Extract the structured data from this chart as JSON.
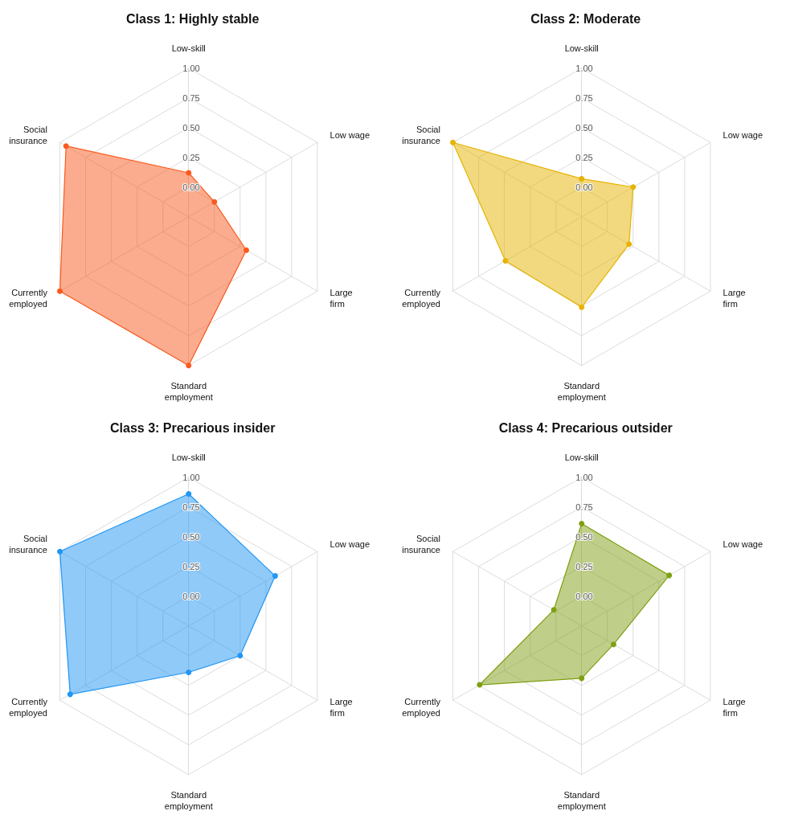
{
  "chart_data": [
    {
      "type": "radar",
      "title": "Class 1: Highly stable",
      "categories": [
        "Low-skill",
        "Low wage",
        "Large firm",
        "Standard employment",
        "Currently employed",
        "Social insurance"
      ],
      "ylim": [
        -0.25,
        1
      ],
      "yticks": [
        {
          "value": 0,
          "label": "0.00"
        },
        {
          "value": 0.25,
          "label": "0.25"
        },
        {
          "value": 0.5,
          "label": "0.50"
        },
        {
          "value": 0.75,
          "label": "0.75"
        },
        {
          "value": 1,
          "label": "1.00"
        }
      ],
      "marker": "circle",
      "series": [
        {
          "color": "#fa5a1e",
          "values": [
            0.12,
            0.0,
            0.31,
            1.0,
            1.0,
            0.94
          ]
        }
      ]
    },
    {
      "type": "radar",
      "title": "Class 2: Moderate",
      "categories": [
        "Low-skill",
        "Low wage",
        "Large firm",
        "Standard employment",
        "Currently employed",
        "Social insurance"
      ],
      "ylim": [
        -0.25,
        1
      ],
      "yticks": [
        {
          "value": 0,
          "label": "0.00"
        },
        {
          "value": 0.25,
          "label": "0.25"
        },
        {
          "value": 0.5,
          "label": "0.50"
        },
        {
          "value": 0.75,
          "label": "0.75"
        },
        {
          "value": 1,
          "label": "1.00"
        }
      ],
      "marker": "circle",
      "series": [
        {
          "color": "#e6b400",
          "values": [
            0.07,
            0.25,
            0.21,
            0.51,
            0.49,
            1.0
          ]
        }
      ]
    },
    {
      "type": "radar",
      "title": "Class 3: Precarious insider",
      "categories": [
        "Low-skill",
        "Low wage",
        "Large firm",
        "Standard employment",
        "Currently employed",
        "Social insurance"
      ],
      "ylim": [
        -0.25,
        1
      ],
      "yticks": [
        {
          "value": 0,
          "label": "0.00"
        },
        {
          "value": 0.25,
          "label": "0.25"
        },
        {
          "value": 0.5,
          "label": "0.50"
        },
        {
          "value": 0.75,
          "label": "0.75"
        },
        {
          "value": 1,
          "label": "1.00"
        }
      ],
      "marker": "circle",
      "series": [
        {
          "color": "#2196f3",
          "values": [
            0.86,
            0.59,
            0.25,
            0.14,
            0.9,
            1.0
          ]
        }
      ]
    },
    {
      "type": "radar",
      "title": "Class 4: Precarious outsider",
      "categories": [
        "Low-skill",
        "Low wage",
        "Large firm",
        "Standard employment",
        "Currently employed",
        "Social insurance"
      ],
      "ylim": [
        -0.25,
        1
      ],
      "yticks": [
        {
          "value": 0,
          "label": "0.00"
        },
        {
          "value": 0.25,
          "label": "0.25"
        },
        {
          "value": 0.5,
          "label": "0.50"
        },
        {
          "value": 0.75,
          "label": "0.75"
        },
        {
          "value": 1,
          "label": "1.00"
        }
      ],
      "marker": "circle",
      "series": [
        {
          "color": "#7f9f14",
          "values": [
            0.61,
            0.6,
            0.06,
            0.19,
            0.74,
            0.02
          ]
        }
      ]
    }
  ]
}
